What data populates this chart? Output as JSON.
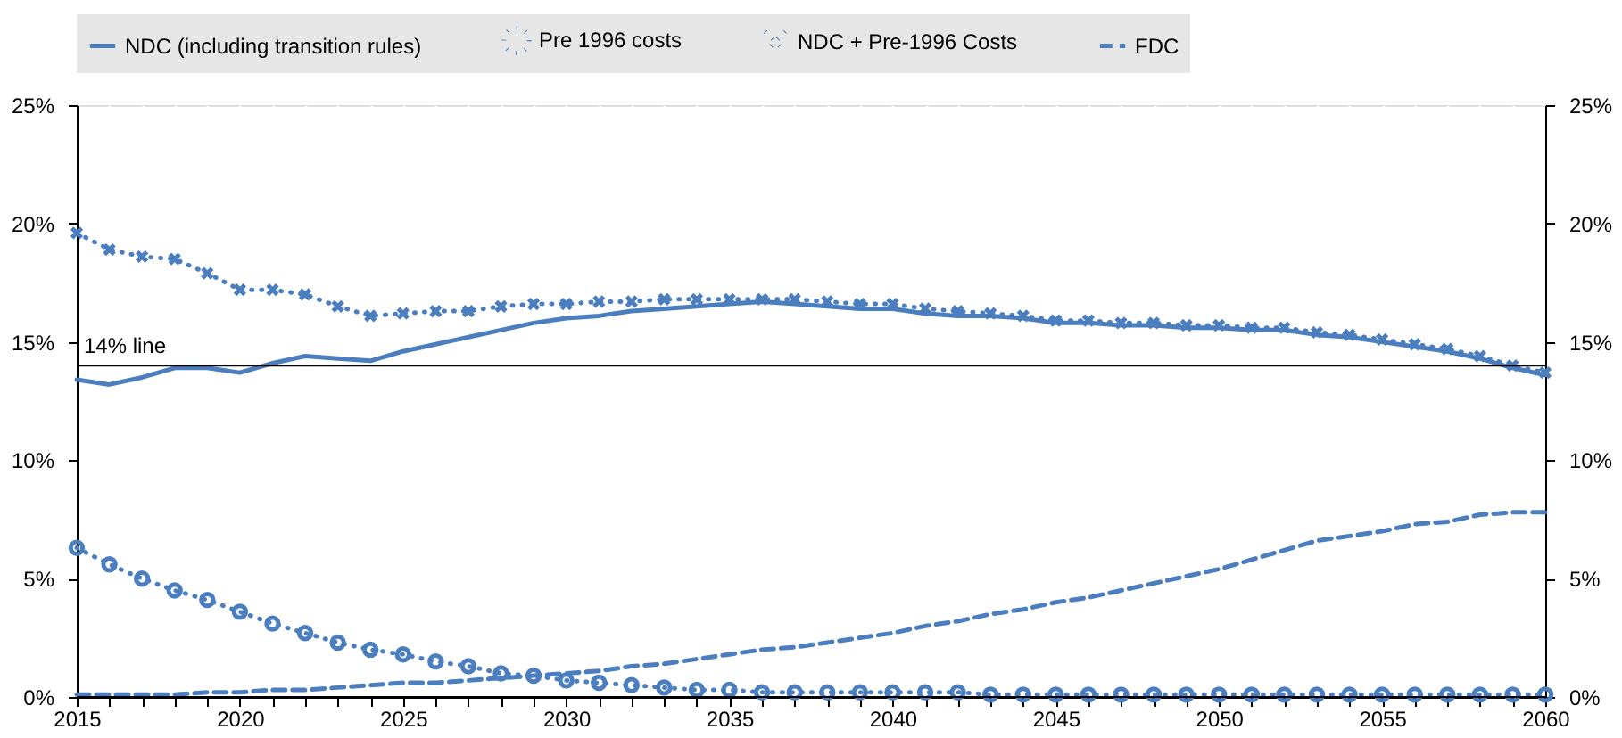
{
  "chart_data": {
    "type": "line",
    "x": [
      2015,
      2016,
      2017,
      2018,
      2019,
      2020,
      2021,
      2022,
      2023,
      2024,
      2025,
      2026,
      2027,
      2028,
      2029,
      2030,
      2031,
      2032,
      2033,
      2034,
      2035,
      2036,
      2037,
      2038,
      2039,
      2040,
      2041,
      2042,
      2043,
      2044,
      2045,
      2046,
      2047,
      2048,
      2049,
      2050,
      2051,
      2052,
      2053,
      2054,
      2055,
      2056,
      2057,
      2058,
      2059,
      2060
    ],
    "series": [
      {
        "name": "NDC (including transition rules)",
        "color": "#4a7ebf",
        "line_style": "solid",
        "marker": "none",
        "values": [
          13.4,
          13.2,
          13.5,
          13.9,
          13.9,
          13.7,
          14.1,
          14.4,
          14.3,
          14.2,
          14.6,
          14.9,
          15.2,
          15.5,
          15.8,
          16.0,
          16.1,
          16.3,
          16.4,
          16.5,
          16.6,
          16.7,
          16.6,
          16.5,
          16.4,
          16.4,
          16.2,
          16.1,
          16.1,
          16.0,
          15.8,
          15.8,
          15.7,
          15.7,
          15.6,
          15.6,
          15.5,
          15.5,
          15.3,
          15.2,
          15.0,
          14.8,
          14.6,
          14.3,
          13.9,
          13.6
        ]
      },
      {
        "name": "Pre 1996 costs",
        "color": "#4a7ebf",
        "line_style": "dotted",
        "marker": "circle",
        "values": [
          6.3,
          5.6,
          5.0,
          4.5,
          4.1,
          3.6,
          3.1,
          2.7,
          2.3,
          2.0,
          1.8,
          1.5,
          1.3,
          1.0,
          0.9,
          0.7,
          0.6,
          0.5,
          0.4,
          0.3,
          0.3,
          0.2,
          0.2,
          0.2,
          0.2,
          0.2,
          0.2,
          0.2,
          0.1,
          0.1,
          0.1,
          0.1,
          0.1,
          0.1,
          0.1,
          0.1,
          0.1,
          0.1,
          0.1,
          0.1,
          0.1,
          0.1,
          0.1,
          0.1,
          0.1,
          0.1
        ]
      },
      {
        "name": "NDC + Pre-1996 Costs",
        "color": "#4a7ebf",
        "line_style": "dotted",
        "marker": "cross",
        "values": [
          19.6,
          18.9,
          18.6,
          18.5,
          17.9,
          17.2,
          17.2,
          17.0,
          16.5,
          16.1,
          16.2,
          16.3,
          16.3,
          16.5,
          16.6,
          16.6,
          16.7,
          16.7,
          16.8,
          16.8,
          16.8,
          16.8,
          16.8,
          16.7,
          16.6,
          16.6,
          16.4,
          16.3,
          16.2,
          16.1,
          15.9,
          15.9,
          15.8,
          15.8,
          15.7,
          15.7,
          15.6,
          15.6,
          15.4,
          15.3,
          15.1,
          14.9,
          14.7,
          14.4,
          14.0,
          13.7
        ]
      },
      {
        "name": "FDC",
        "color": "#4a7ebf",
        "line_style": "dashed",
        "marker": "none",
        "values": [
          0.1,
          0.1,
          0.1,
          0.1,
          0.2,
          0.2,
          0.3,
          0.3,
          0.4,
          0.5,
          0.6,
          0.6,
          0.7,
          0.8,
          0.9,
          1.0,
          1.1,
          1.3,
          1.4,
          1.6,
          1.8,
          2.0,
          2.1,
          2.3,
          2.5,
          2.7,
          3.0,
          3.2,
          3.5,
          3.7,
          4.0,
          4.2,
          4.5,
          4.8,
          5.1,
          5.4,
          5.8,
          6.2,
          6.6,
          6.8,
          7.0,
          7.3,
          7.4,
          7.7,
          7.8,
          7.8
        ]
      }
    ],
    "xlim": [
      2015,
      2060
    ],
    "xticks": [
      2015,
      {
        "value": 2016,
        "label": null
      },
      {
        "value": 2017,
        "label": null
      },
      {
        "value": 2018,
        "label": null
      },
      {
        "value": 2019,
        "label": null
      },
      2020,
      {
        "value": 2021,
        "label": null
      },
      {
        "value": 2022,
        "label": null
      },
      {
        "value": 2023,
        "label": null
      },
      {
        "value": 2024,
        "label": null
      },
      2025,
      {
        "value": 2026,
        "label": null
      },
      {
        "value": 2027,
        "label": null
      },
      {
        "value": 2028,
        "label": null
      },
      {
        "value": 2029,
        "label": null
      },
      2030,
      {
        "value": 2031,
        "label": null
      },
      {
        "value": 2032,
        "label": null
      },
      {
        "value": 2033,
        "label": null
      },
      {
        "value": 2034,
        "label": null
      },
      2035,
      {
        "value": 2036,
        "label": null
      },
      {
        "value": 2037,
        "label": null
      },
      {
        "value": 2038,
        "label": null
      },
      {
        "value": 2039,
        "label": null
      },
      2040,
      {
        "value": 2041,
        "label": null
      },
      {
        "value": 2042,
        "label": null
      },
      {
        "value": 2043,
        "label": null
      },
      {
        "value": 2044,
        "label": null
      },
      2045,
      {
        "value": 2046,
        "label": null
      },
      {
        "value": 2047,
        "label": null
      },
      {
        "value": 2048,
        "label": null
      },
      {
        "value": 2049,
        "label": null
      },
      2050,
      {
        "value": 2051,
        "label": null
      },
      {
        "value": 2052,
        "label": null
      },
      {
        "value": 2053,
        "label": null
      },
      {
        "value": 2054,
        "label": null
      },
      2055,
      {
        "value": 2056,
        "label": null
      },
      {
        "value": 2057,
        "label": null
      },
      {
        "value": 2058,
        "label": null
      },
      {
        "value": 2059,
        "label": null
      },
      2060
    ],
    "ylim": [
      0,
      25
    ],
    "yticks": [
      {
        "value": 0,
        "label": "0%"
      },
      {
        "value": 5,
        "label": "5%"
      },
      {
        "value": 10,
        "label": "10%"
      },
      {
        "value": 15,
        "label": "15%"
      },
      {
        "value": 20,
        "label": "20%"
      },
      {
        "value": 25,
        "label": "25%"
      }
    ],
    "y2lim": [
      0,
      25
    ],
    "y2ticks": [
      {
        "value": 0,
        "label": "0%"
      },
      {
        "value": 5,
        "label": "5%"
      },
      {
        "value": 10,
        "label": "10%"
      },
      {
        "value": 15,
        "label": "15%"
      },
      {
        "value": 20,
        "label": "20%"
      },
      {
        "value": 25,
        "label": "25%"
      }
    ],
    "ref_lines": [
      {
        "axis": "y",
        "value": 14,
        "label": "14% line",
        "color": "#000000"
      }
    ],
    "grid": "x",
    "legend": "top"
  }
}
